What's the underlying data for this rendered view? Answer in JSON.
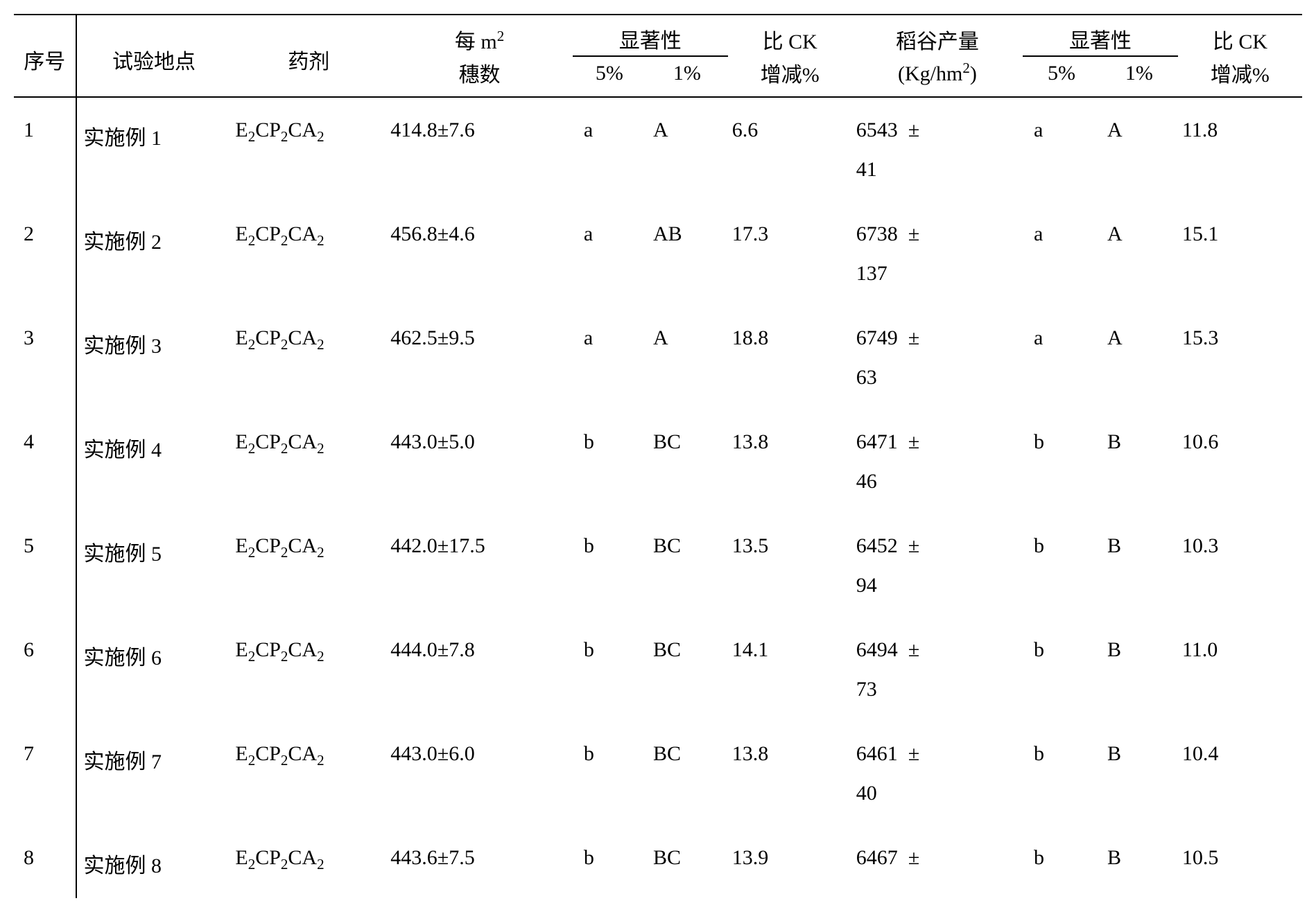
{
  "table": {
    "headers": {
      "seq": "序号",
      "site": "试验地点",
      "agent": "药剂",
      "m2_line1": "每 m",
      "m2_sup": "2",
      "m2_line2": "穗数",
      "significance": "显著性",
      "sig_5": "5%",
      "sig_1": "1%",
      "ck_line1": "比 CK",
      "ck_line2": "增减%",
      "yield_line1": "稻谷产量",
      "yield_line2": "(Kg/hm",
      "yield_sup": "2",
      "yield_line2_end": ")",
      "significance2": "显著性",
      "sig2_5": "5%",
      "sig2_1": "1%",
      "ck2_line1": "比 CK",
      "ck2_line2": "增减%"
    },
    "rows": [
      {
        "seq": "1",
        "site": "实施例 1",
        "agent": "E₂CP₂CA₂",
        "m2": "414.8±7.6",
        "s5": "a",
        "s1": "A",
        "ck": "6.6",
        "yield": "6543 ± 41",
        "ss5": "a",
        "ss1": "A",
        "ck2": "11.8"
      },
      {
        "seq": "2",
        "site": "实施例 2",
        "agent": "E₂CP₂CA₂",
        "m2": "456.8±4.6",
        "s5": "a",
        "s1": "AB",
        "ck": "17.3",
        "yield": "6738 ± 137",
        "ss5": "a",
        "ss1": "A",
        "ck2": "15.1"
      },
      {
        "seq": "3",
        "site": "实施例 3",
        "agent": "E₂CP₂CA₂",
        "m2": "462.5±9.5",
        "s5": "a",
        "s1": "A",
        "ck": "18.8",
        "yield": "6749 ± 63",
        "ss5": "a",
        "ss1": "A",
        "ck2": "15.3"
      },
      {
        "seq": "4",
        "site": "实施例 4",
        "agent": "E₂CP₂CA₂",
        "m2": "443.0±5.0",
        "s5": "b",
        "s1": "BC",
        "ck": "13.8",
        "yield": "6471 ± 46",
        "ss5": "b",
        "ss1": "B",
        "ck2": "10.6"
      },
      {
        "seq": "5",
        "site": "实施例 5",
        "agent": "E₂CP₂CA₂",
        "m2": "442.0±17.5",
        "s5": "b",
        "s1": "BC",
        "ck": "13.5",
        "yield": "6452 ± 94",
        "ss5": "b",
        "ss1": "B",
        "ck2": "10.3"
      },
      {
        "seq": "6",
        "site": "实施例 6",
        "agent": "E₂CP₂CA₂",
        "m2": "444.0±7.8",
        "s5": "b",
        "s1": "BC",
        "ck": "14.1",
        "yield": "6494 ± 73",
        "ss5": "b",
        "ss1": "B",
        "ck2": "11.0"
      },
      {
        "seq": "7",
        "site": "实施例 7",
        "agent": "E₂CP₂CA₂",
        "m2": "443.0±6.0",
        "s5": "b",
        "s1": "BC",
        "ck": "13.8",
        "yield": "6461 ± 40",
        "ss5": "b",
        "ss1": "B",
        "ck2": "10.4"
      },
      {
        "seq": "8",
        "site": "实施例 8",
        "agent": "E₂CP₂CA₂",
        "m2": "443.6±7.5",
        "s5": "b",
        "s1": "BC",
        "ck": "13.9",
        "yield": "6467 ±",
        "ss5": "b",
        "ss1": "B",
        "ck2": "10.5"
      }
    ],
    "styling": {
      "font_size_pt": 30,
      "border_color": "#000000",
      "background": "#ffffff",
      "text_color": "#000000",
      "row_line_height": 1.9
    }
  }
}
